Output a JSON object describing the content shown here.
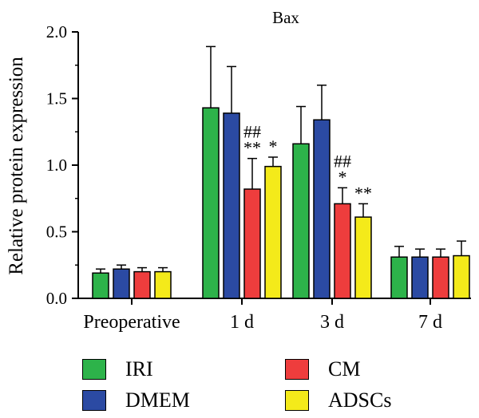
{
  "chart_data": {
    "type": "bar",
    "title": "Bax",
    "ylabel": "Relative protein expression",
    "xlabel": "",
    "ylim": [
      0,
      2.0
    ],
    "yticks": [
      "0.0",
      "0.5",
      "1.0",
      "1.5",
      "2.0"
    ],
    "categories": [
      "Preoperative",
      "1 d",
      "3 d",
      "7 d"
    ],
    "series": [
      {
        "name": "IRI",
        "color": "#2db34a",
        "values": [
          0.19,
          1.43,
          1.16,
          0.31
        ],
        "errors": [
          0.03,
          0.46,
          0.28,
          0.08
        ]
      },
      {
        "name": "DMEM",
        "color": "#2b4aa3",
        "values": [
          0.22,
          1.39,
          1.34,
          0.31
        ],
        "errors": [
          0.03,
          0.35,
          0.26,
          0.06
        ]
      },
      {
        "name": "CM",
        "color": "#ee3d3d",
        "values": [
          0.2,
          0.82,
          0.71,
          0.31
        ],
        "errors": [
          0.03,
          0.23,
          0.12,
          0.06
        ]
      },
      {
        "name": "ADSCs",
        "color": "#f4ea1a",
        "values": [
          0.2,
          0.99,
          0.61,
          0.32
        ],
        "errors": [
          0.03,
          0.07,
          0.1,
          0.11
        ]
      }
    ],
    "annotations": [
      {
        "category": "1 d",
        "series": "CM",
        "lines": [
          "##",
          "**"
        ]
      },
      {
        "category": "1 d",
        "series": "ADSCs",
        "lines": [
          "*"
        ]
      },
      {
        "category": "3 d",
        "series": "CM",
        "lines": [
          "##",
          "*"
        ]
      },
      {
        "category": "3 d",
        "series": "ADSCs",
        "lines": [
          "**"
        ]
      }
    ],
    "legend": {
      "placement": "bottom"
    }
  }
}
